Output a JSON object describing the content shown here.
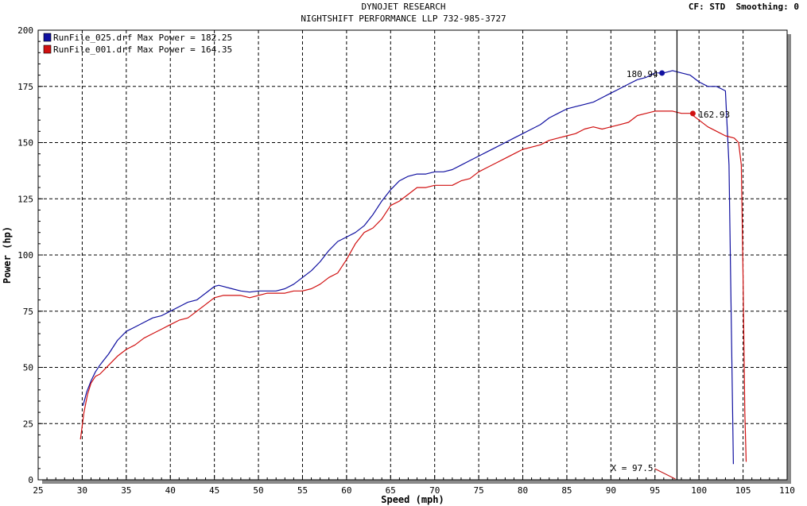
{
  "header": {
    "title": "DYNOJET RESEARCH",
    "subtitle": "NIGHTSHIFT PERFORMANCE LLP 732-985-3727",
    "settings": "CF: STD  Smoothing: 0"
  },
  "colors": {
    "run1": "#1010a0",
    "run2": "#d01010",
    "grid": "#000000",
    "plot_bg": "#ffffff",
    "shadow": "#8a8a8a"
  },
  "chart_data": {
    "type": "line",
    "xlabel": "Speed (mph)",
    "ylabel": "Power (hp)",
    "xlim": [
      25,
      110
    ],
    "ylim": [
      0,
      200
    ],
    "xticks": [
      25,
      30,
      35,
      40,
      45,
      50,
      55,
      60,
      65,
      70,
      75,
      80,
      85,
      90,
      95,
      100,
      105,
      110
    ],
    "yticks": [
      0,
      25,
      50,
      75,
      100,
      125,
      150,
      175,
      200
    ],
    "grid": true,
    "legend": "top-left",
    "cursor": {
      "x": 97.5,
      "label": "X = 97.5"
    },
    "series": [
      {
        "name": "RunFile_025.drf Max Power = 182.25",
        "color": "#1010a0",
        "marker": {
          "x": 95.8,
          "y": 180.94,
          "label": "180.94"
        },
        "x": [
          30.1,
          30.5,
          31,
          31.5,
          32,
          33,
          34,
          35,
          36,
          37,
          38,
          39,
          40,
          41,
          42,
          43,
          44,
          45,
          45.5,
          46,
          47,
          48,
          49,
          50,
          51,
          52,
          53,
          54,
          55,
          56,
          57,
          58,
          59,
          60,
          61,
          62,
          63,
          64,
          65,
          66,
          67,
          68,
          69,
          70,
          71,
          72,
          73,
          74,
          75,
          76,
          77,
          78,
          79,
          80,
          81,
          82,
          83,
          84,
          85,
          86,
          87,
          88,
          89,
          90,
          91,
          92,
          93,
          94,
          95,
          96,
          97,
          98,
          99,
          100,
          101,
          102,
          103,
          103.4,
          103.7,
          103.9
        ],
        "values": [
          33,
          39,
          44,
          48,
          51,
          56,
          62,
          66,
          68,
          70,
          72,
          73,
          75,
          77,
          79,
          80,
          83,
          86,
          86.5,
          86,
          85,
          84,
          83.5,
          84,
          84,
          84,
          85,
          87,
          90,
          93,
          97,
          102,
          106,
          108,
          110,
          113,
          118,
          124,
          129,
          133,
          135,
          136,
          136,
          137,
          137,
          138,
          140,
          142,
          144,
          146,
          148,
          150,
          152,
          154,
          156,
          158,
          161,
          163,
          165,
          166,
          167,
          168,
          170,
          172,
          174,
          176,
          178,
          179,
          181,
          181,
          182,
          181,
          180,
          177,
          175,
          175,
          173,
          140,
          60,
          7
        ]
      },
      {
        "name": "RunFile_001.drf Max Power = 164.35",
        "color": "#d01010",
        "marker": {
          "x": 99.3,
          "y": 162.93,
          "label": "162.93"
        },
        "x": [
          29.8,
          30.2,
          30.6,
          31,
          31.5,
          32,
          33,
          34,
          35,
          36,
          37,
          38,
          39,
          40,
          41,
          42,
          43,
          44,
          45,
          46,
          47,
          48,
          49,
          50,
          51,
          52,
          53,
          54,
          55,
          56,
          57,
          58,
          59,
          60,
          61,
          62,
          63,
          64,
          65,
          66,
          67,
          68,
          69,
          70,
          71,
          72,
          73,
          74,
          75,
          76,
          77,
          78,
          79,
          80,
          81,
          82,
          83,
          84,
          85,
          86,
          87,
          88,
          89,
          90,
          91,
          92,
          93,
          94,
          95,
          96,
          97,
          98,
          99,
          100,
          101,
          102,
          103,
          104,
          104.5,
          104.8,
          105,
          105.2,
          105.35
        ],
        "values": [
          18,
          30,
          38,
          43,
          46,
          47,
          51,
          55,
          58,
          60,
          63,
          65,
          67,
          69,
          71,
          72,
          75,
          78,
          81,
          82,
          82,
          82,
          81,
          82,
          83,
          83,
          83,
          84,
          84,
          85,
          87,
          90,
          92,
          98,
          105,
          110,
          112,
          116,
          122,
          124,
          127,
          130,
          130,
          131,
          131,
          131,
          133,
          134,
          137,
          139,
          141,
          143,
          145,
          147,
          148,
          149,
          151,
          152,
          153,
          154,
          156,
          157,
          156,
          157,
          158,
          159,
          162,
          163,
          164,
          164,
          164,
          163,
          163,
          160,
          157,
          155,
          153,
          152,
          150,
          140,
          90,
          30,
          8
        ]
      }
    ]
  }
}
